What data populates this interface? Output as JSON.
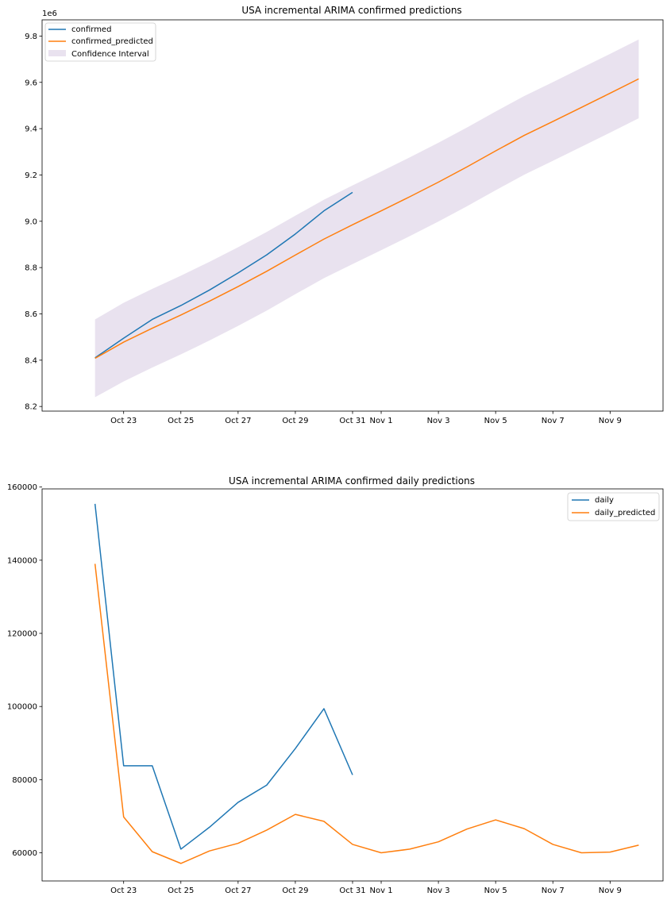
{
  "chart_data": [
    {
      "type": "line",
      "title": "USA incremental ARIMA confirmed predictions",
      "y_offset_label": "1e6",
      "x_tick_labels": [
        "Oct 23",
        "Oct 25",
        "Oct 27",
        "Oct 29",
        "Oct 31",
        "Nov 1",
        "Nov 3",
        "Nov 5",
        "Nov 7",
        "Nov 9"
      ],
      "x_tick_days": [
        23,
        25,
        27,
        29,
        31,
        32,
        34,
        36,
        38,
        40
      ],
      "x_day_range": [
        20.15,
        41.85
      ],
      "y_ticks": [
        8.2,
        8.4,
        8.6,
        8.8,
        9.0,
        9.2,
        9.4,
        9.6,
        9.8
      ],
      "ylim": [
        8.18,
        9.87
      ],
      "legend_position": "upper left",
      "colors": {
        "confirmed": "#1f77b4",
        "predicted": "#ff7f0e",
        "interval": "#e9e2ef"
      },
      "series": [
        {
          "name": "confirmed",
          "x": [
            22,
            23,
            24,
            25,
            26,
            27,
            28,
            29,
            30,
            31
          ],
          "values": [
            8.41,
            8.495,
            8.576,
            8.636,
            8.703,
            8.777,
            8.855,
            8.945,
            9.045,
            9.125
          ]
        },
        {
          "name": "confirmed_predicted",
          "x": [
            22,
            23,
            24,
            25,
            26,
            27,
            28,
            29,
            30,
            31,
            32,
            33,
            34,
            35,
            36,
            37,
            38,
            39,
            40,
            41
          ],
          "values": [
            8.408,
            8.478,
            8.538,
            8.595,
            8.655,
            8.718,
            8.784,
            8.854,
            8.923,
            8.985,
            9.045,
            9.106,
            9.169,
            9.235,
            9.304,
            9.371,
            9.431,
            9.492,
            9.553,
            9.615
          ]
        }
      ],
      "confidence_interval": {
        "name": "Confidence Interval",
        "x": [
          22,
          23,
          24,
          25,
          26,
          27,
          28,
          29,
          30,
          31,
          32,
          33,
          34,
          35,
          36,
          37,
          38,
          39,
          40,
          41
        ],
        "lower": [
          8.24,
          8.308,
          8.368,
          8.425,
          8.485,
          8.548,
          8.614,
          8.685,
          8.754,
          8.815,
          8.875,
          8.936,
          8.999,
          9.065,
          9.134,
          9.201,
          9.261,
          9.322,
          9.383,
          9.445
        ],
        "upper": [
          8.576,
          8.648,
          8.708,
          8.765,
          8.825,
          8.888,
          8.954,
          9.024,
          9.093,
          9.155,
          9.215,
          9.276,
          9.339,
          9.405,
          9.474,
          9.541,
          9.601,
          9.662,
          9.723,
          9.785
        ]
      }
    },
    {
      "type": "line",
      "title": "USA incremental ARIMA confirmed daily predictions",
      "x_tick_labels": [
        "Oct 23",
        "Oct 25",
        "Oct 27",
        "Oct 29",
        "Oct 31",
        "Nov 1",
        "Nov 3",
        "Nov 5",
        "Nov 7",
        "Nov 9"
      ],
      "x_tick_days": [
        23,
        25,
        27,
        29,
        31,
        32,
        34,
        36,
        38,
        40
      ],
      "x_day_range": [
        20.15,
        41.85
      ],
      "y_ticks": [
        60000,
        80000,
        100000,
        120000,
        140000,
        160000
      ],
      "y_tick_labels": [
        "60000",
        "80000",
        "100000",
        "120000",
        "140000",
        "160000"
      ],
      "ylim": [
        52300,
        159500
      ],
      "legend_position": "upper right",
      "colors": {
        "daily": "#1f77b4",
        "predicted": "#ff7f0e"
      },
      "series": [
        {
          "name": "daily",
          "x": [
            22,
            23,
            24,
            25,
            26,
            27,
            28,
            29,
            30,
            31
          ],
          "values": [
            155400,
            83800,
            83800,
            61000,
            67000,
            73800,
            78500,
            88500,
            99400,
            81300
          ]
        },
        {
          "name": "daily_predicted",
          "x": [
            22,
            23,
            24,
            25,
            26,
            27,
            28,
            29,
            30,
            31,
            32,
            33,
            34,
            35,
            36,
            37,
            38,
            39,
            40,
            41
          ],
          "values": [
            139000,
            69800,
            60300,
            57100,
            60500,
            62600,
            66200,
            70500,
            68600,
            62300,
            60000,
            61000,
            63000,
            66500,
            69000,
            66600,
            62300,
            60000,
            60200,
            62100
          ]
        }
      ]
    }
  ]
}
